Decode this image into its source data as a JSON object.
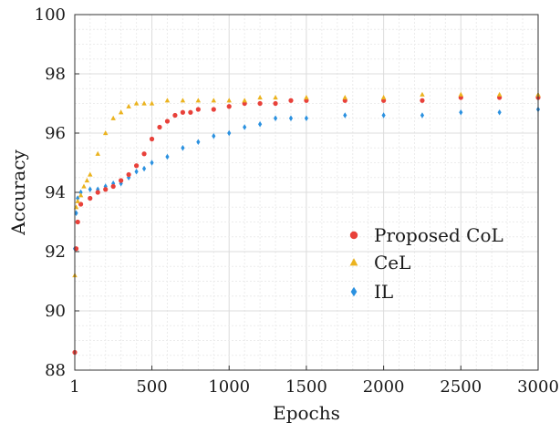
{
  "chart_data": {
    "type": "scatter",
    "xlabel": "Epochs",
    "ylabel": "Accuracy",
    "xlim": [
      1,
      3000
    ],
    "ylim": [
      88,
      100
    ],
    "x_ticks": [
      1,
      500,
      1000,
      1500,
      2000,
      2500,
      3000
    ],
    "y_ticks": [
      88,
      90,
      92,
      94,
      96,
      98,
      100
    ],
    "grid": "on (major and minor, light gray)",
    "legend_position": "lower-right",
    "series": [
      {
        "name": "Proposed CoL",
        "marker": "circle",
        "color": "#e8413a",
        "x": [
          1,
          10,
          20,
          40,
          100,
          150,
          200,
          250,
          300,
          350,
          400,
          450,
          500,
          550,
          600,
          650,
          700,
          750,
          800,
          900,
          1000,
          1100,
          1200,
          1300,
          1400,
          1500,
          1750,
          2000,
          2250,
          2500,
          2750,
          3000
        ],
        "y": [
          88.6,
          92.1,
          93.0,
          93.6,
          93.8,
          94.0,
          94.1,
          94.2,
          94.4,
          94.6,
          94.9,
          95.3,
          95.8,
          96.2,
          96.4,
          96.6,
          96.7,
          96.7,
          96.8,
          96.8,
          96.9,
          97.0,
          97.0,
          97.0,
          97.1,
          97.1,
          97.1,
          97.1,
          97.1,
          97.2,
          97.2,
          97.2
        ]
      },
      {
        "name": "CeL",
        "marker": "triangle",
        "color": "#ebb31f",
        "x": [
          1,
          10,
          20,
          40,
          60,
          80,
          100,
          150,
          200,
          250,
          300,
          350,
          400,
          450,
          500,
          600,
          700,
          800,
          900,
          1000,
          1100,
          1200,
          1300,
          1500,
          1750,
          2000,
          2250,
          2500,
          2750,
          3000
        ],
        "y": [
          91.2,
          93.5,
          93.7,
          93.9,
          94.2,
          94.4,
          94.6,
          95.3,
          96.0,
          96.5,
          96.7,
          96.9,
          97.0,
          97.0,
          97.0,
          97.1,
          97.1,
          97.1,
          97.1,
          97.1,
          97.1,
          97.2,
          97.2,
          97.2,
          97.2,
          97.2,
          97.3,
          97.3,
          97.3,
          97.3
        ]
      },
      {
        "name": "IL",
        "marker": "diamond",
        "color": "#2b91e0",
        "x": [
          1,
          10,
          20,
          40,
          100,
          150,
          200,
          250,
          300,
          350,
          400,
          450,
          500,
          600,
          700,
          800,
          900,
          1000,
          1100,
          1200,
          1300,
          1400,
          1500,
          1750,
          2000,
          2250,
          2500,
          2750,
          3000
        ],
        "y": [
          92.1,
          93.3,
          93.8,
          94.0,
          94.1,
          94.1,
          94.2,
          94.3,
          94.3,
          94.5,
          94.7,
          94.8,
          95.0,
          95.2,
          95.5,
          95.7,
          95.9,
          96.0,
          96.2,
          96.3,
          96.5,
          96.5,
          96.5,
          96.6,
          96.6,
          96.6,
          96.7,
          96.7,
          96.8
        ]
      }
    ]
  }
}
